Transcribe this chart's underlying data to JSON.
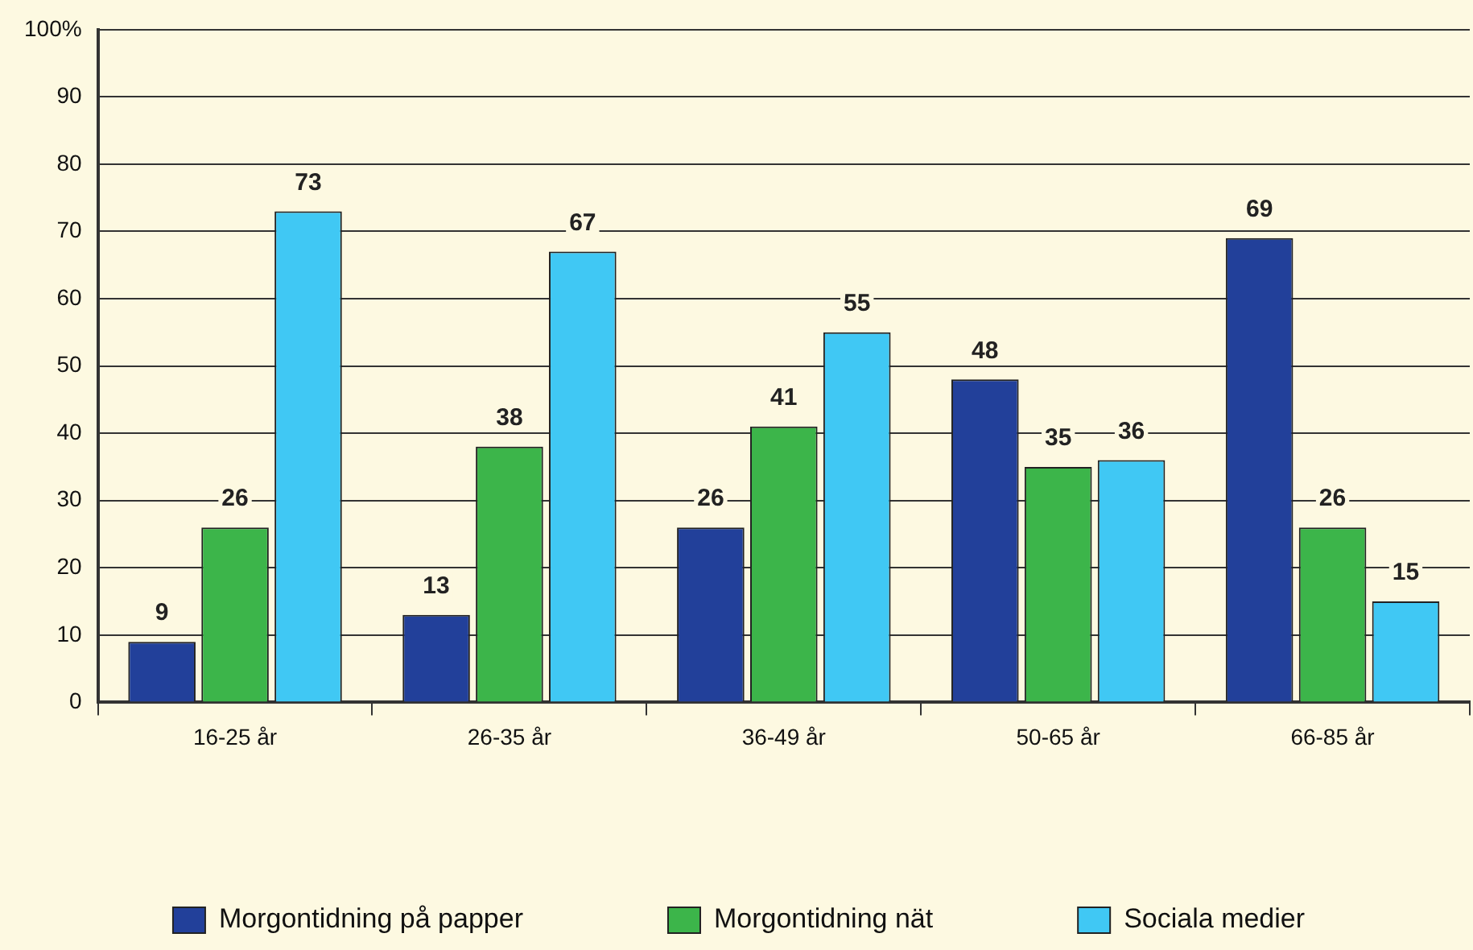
{
  "chart_data": {
    "type": "bar",
    "categories": [
      "16-25 år",
      "26-35 år",
      "36-49 år",
      "50-65 år",
      "66-85 år"
    ],
    "series": [
      {
        "name": "Morgontidning på papper",
        "color": "#22409a",
        "values": [
          9,
          13,
          26,
          48,
          69
        ]
      },
      {
        "name": "Morgontidning nät",
        "color": "#3cb54a",
        "values": [
          26,
          38,
          41,
          35,
          26
        ]
      },
      {
        "name": "Sociala medier",
        "color": "#40c8f4",
        "values": [
          73,
          67,
          55,
          36,
          15
        ]
      }
    ],
    "ylim": [
      0,
      100
    ],
    "yticks": [
      0,
      10,
      20,
      30,
      40,
      50,
      60,
      70,
      80,
      90,
      {
        "value": 100,
        "label": "100%"
      }
    ],
    "grid": "y",
    "legend": "bottom",
    "data_labels": true
  }
}
